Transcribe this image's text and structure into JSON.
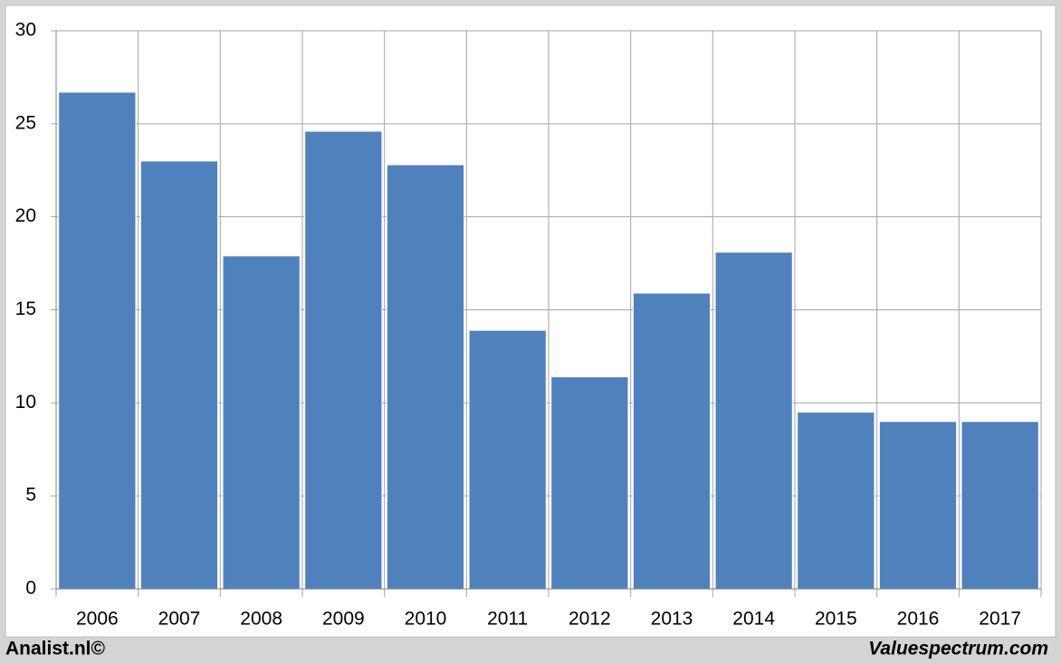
{
  "chart_data": {
    "type": "bar",
    "categories": [
      "2006",
      "2007",
      "2008",
      "2009",
      "2010",
      "2011",
      "2012",
      "2013",
      "2014",
      "2015",
      "2016",
      "2017"
    ],
    "values": [
      26.7,
      23.0,
      17.9,
      24.6,
      22.8,
      13.9,
      11.4,
      15.9,
      18.1,
      9.5,
      9.0,
      9.0
    ],
    "color": "#4f81bd",
    "ylim": [
      0,
      30
    ],
    "yticks": [
      0,
      5,
      10,
      15,
      20,
      25,
      30
    ],
    "grid": true,
    "footer_left": "Analist.nl©",
    "footer_right": "Valuespectrum.com"
  }
}
